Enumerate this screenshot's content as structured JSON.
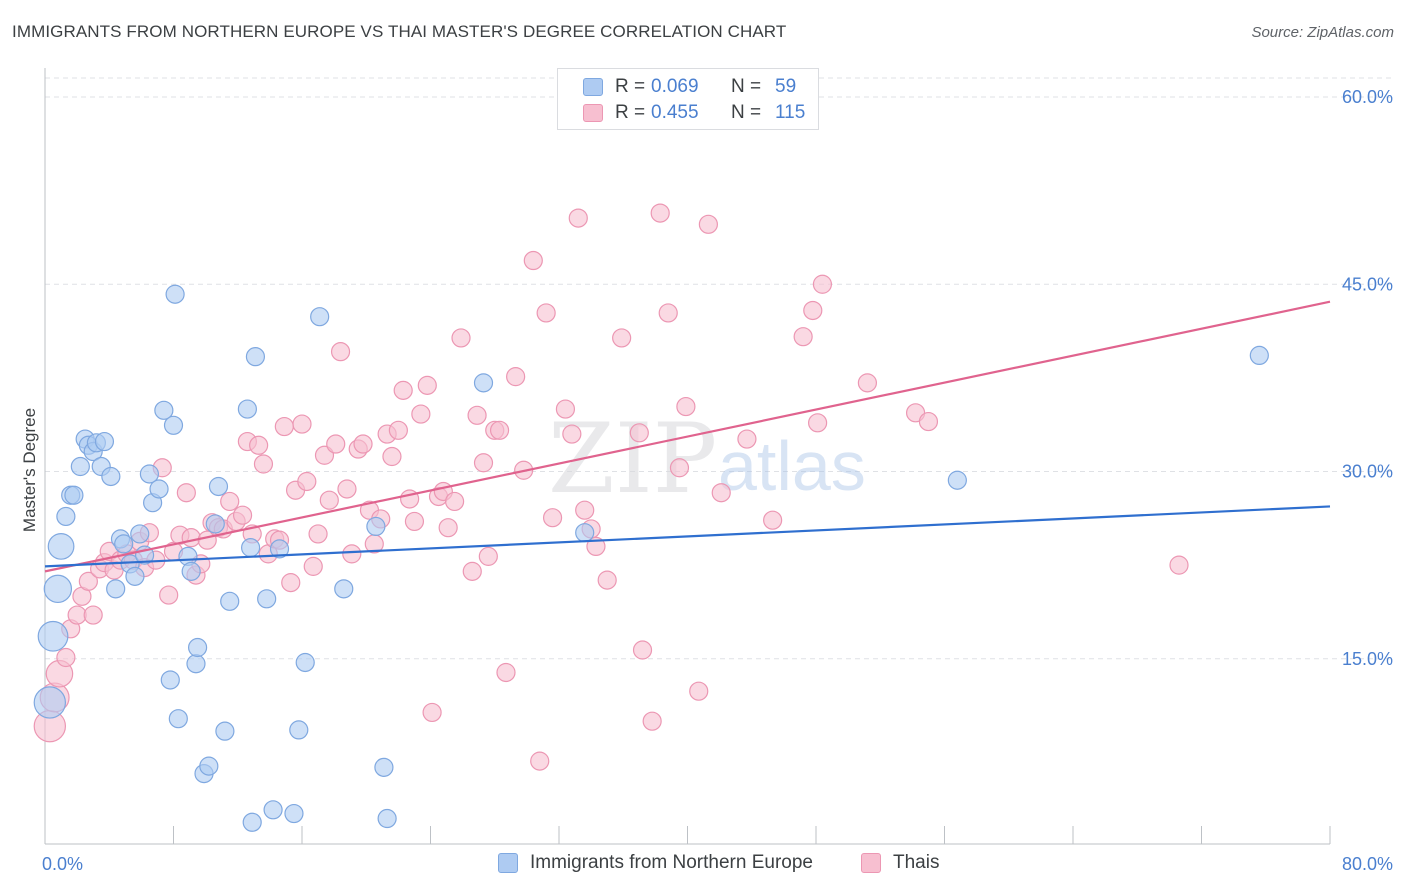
{
  "title": "IMMIGRANTS FROM NORTHERN EUROPE VS THAI MASTER'S DEGREE CORRELATION CHART",
  "source": "Source: ZipAtlas.com",
  "watermark": {
    "zip": "ZIP",
    "atlas": "atlas"
  },
  "colors": {
    "blue_fill": "#aecbf2",
    "blue_stroke": "#7fa8e0",
    "blue_line": "#2f6fcf",
    "pink_fill": "#f7bfd0",
    "pink_stroke": "#ec97b3",
    "pink_line": "#e0638e",
    "grid": "#dfe1e5",
    "tick_label": "#4a7fcf"
  },
  "legend": {
    "rows": [
      {
        "r_label": "R =",
        "r_value": "0.069",
        "n_label": "N =",
        "n_value": "59"
      },
      {
        "r_label": "R =",
        "r_value": "0.455",
        "n_label": "N =",
        "n_value": "115"
      }
    ]
  },
  "bottom_legend": {
    "series1": "Immigrants from Northern Europe",
    "series2": "Thais"
  },
  "chart_data": {
    "type": "scatter",
    "title": "IMMIGRANTS FROM NORTHERN EUROPE VS THAI MASTER'S DEGREE CORRELATION CHART",
    "xlabel": "",
    "ylabel": "Master's Degree",
    "xlim": [
      0,
      80
    ],
    "ylim": [
      0,
      60
    ],
    "x_tick_labels": {
      "left": "0.0%",
      "right": "80.0%"
    },
    "y_ticks": [
      {
        "value": 15,
        "label": "15.0%"
      },
      {
        "value": 30,
        "label": "30.0%"
      },
      {
        "value": 45,
        "label": "45.0%"
      },
      {
        "value": 60,
        "label": "60.0%"
      }
    ],
    "series": [
      {
        "name": "Immigrants from Northern Europe",
        "color": "blue",
        "trend": {
          "x": [
            0,
            80
          ],
          "y": [
            22.4,
            27.2
          ]
        },
        "points": [
          [
            0.3,
            11.5
          ],
          [
            0.5,
            16.8
          ],
          [
            0.8,
            20.6
          ],
          [
            1.0,
            24.0
          ],
          [
            1.3,
            26.4
          ],
          [
            1.6,
            28.1
          ],
          [
            1.8,
            28.1
          ],
          [
            2.2,
            30.4
          ],
          [
            2.5,
            32.6
          ],
          [
            2.7,
            32.1
          ],
          [
            3.0,
            31.6
          ],
          [
            3.2,
            32.3
          ],
          [
            3.5,
            30.4
          ],
          [
            3.7,
            32.4
          ],
          [
            4.1,
            29.6
          ],
          [
            4.4,
            20.6
          ],
          [
            4.7,
            24.6
          ],
          [
            4.9,
            24.2
          ],
          [
            5.3,
            22.6
          ],
          [
            5.6,
            21.6
          ],
          [
            5.9,
            25.0
          ],
          [
            6.2,
            23.3
          ],
          [
            6.5,
            29.8
          ],
          [
            6.7,
            27.5
          ],
          [
            7.1,
            28.6
          ],
          [
            7.4,
            34.9
          ],
          [
            7.8,
            13.3
          ],
          [
            8.0,
            33.7
          ],
          [
            8.1,
            44.2
          ],
          [
            8.3,
            10.2
          ],
          [
            8.9,
            23.2
          ],
          [
            9.1,
            22.0
          ],
          [
            9.4,
            14.6
          ],
          [
            9.5,
            15.9
          ],
          [
            9.9,
            5.8
          ],
          [
            10.2,
            6.4
          ],
          [
            10.6,
            25.8
          ],
          [
            10.8,
            28.8
          ],
          [
            11.2,
            9.2
          ],
          [
            11.5,
            19.6
          ],
          [
            12.6,
            35.0
          ],
          [
            12.8,
            23.9
          ],
          [
            12.9,
            1.9
          ],
          [
            13.1,
            39.2
          ],
          [
            13.8,
            19.8
          ],
          [
            14.2,
            2.9
          ],
          [
            14.6,
            23.8
          ],
          [
            15.5,
            2.6
          ],
          [
            15.8,
            9.3
          ],
          [
            16.2,
            14.7
          ],
          [
            17.1,
            42.4
          ],
          [
            18.6,
            20.6
          ],
          [
            20.6,
            25.6
          ],
          [
            21.1,
            6.3
          ],
          [
            21.3,
            2.2
          ],
          [
            27.3,
            37.1
          ],
          [
            33.6,
            25.1
          ],
          [
            56.8,
            29.3
          ],
          [
            75.6,
            39.3
          ]
        ]
      },
      {
        "name": "Thais",
        "color": "pink",
        "trend": {
          "x": [
            0,
            80
          ],
          "y": [
            22.0,
            43.6
          ]
        },
        "points": [
          [
            0.3,
            9.6
          ],
          [
            0.6,
            11.9
          ],
          [
            0.9,
            13.8
          ],
          [
            1.3,
            15.1
          ],
          [
            1.6,
            17.4
          ],
          [
            2.0,
            18.5
          ],
          [
            2.3,
            20.0
          ],
          [
            2.7,
            21.2
          ],
          [
            3.0,
            18.5
          ],
          [
            3.4,
            22.2
          ],
          [
            3.7,
            22.7
          ],
          [
            4.0,
            23.6
          ],
          [
            4.3,
            22.1
          ],
          [
            4.7,
            22.9
          ],
          [
            5.1,
            23.4
          ],
          [
            5.5,
            22.9
          ],
          [
            5.9,
            24.4
          ],
          [
            6.2,
            22.3
          ],
          [
            6.5,
            25.1
          ],
          [
            6.9,
            22.9
          ],
          [
            7.3,
            30.3
          ],
          [
            7.7,
            20.1
          ],
          [
            8.0,
            23.6
          ],
          [
            8.4,
            24.9
          ],
          [
            8.8,
            28.3
          ],
          [
            9.1,
            24.7
          ],
          [
            9.4,
            21.7
          ],
          [
            9.7,
            22.6
          ],
          [
            10.1,
            24.5
          ],
          [
            10.4,
            25.9
          ],
          [
            10.8,
            25.5
          ],
          [
            11.1,
            25.4
          ],
          [
            11.5,
            27.6
          ],
          [
            11.9,
            26.0
          ],
          [
            12.3,
            26.5
          ],
          [
            12.6,
            32.4
          ],
          [
            12.9,
            25.0
          ],
          [
            13.3,
            32.1
          ],
          [
            13.6,
            30.6
          ],
          [
            13.9,
            23.4
          ],
          [
            14.3,
            24.6
          ],
          [
            14.6,
            24.5
          ],
          [
            14.9,
            33.6
          ],
          [
            15.3,
            21.1
          ],
          [
            15.6,
            28.5
          ],
          [
            16.0,
            33.8
          ],
          [
            16.3,
            29.2
          ],
          [
            16.7,
            22.4
          ],
          [
            17.0,
            25.0
          ],
          [
            17.4,
            31.3
          ],
          [
            17.7,
            27.7
          ],
          [
            18.1,
            32.2
          ],
          [
            18.4,
            39.6
          ],
          [
            18.8,
            28.6
          ],
          [
            19.1,
            23.4
          ],
          [
            19.5,
            31.8
          ],
          [
            19.8,
            32.2
          ],
          [
            20.2,
            26.9
          ],
          [
            20.5,
            24.2
          ],
          [
            20.9,
            26.2
          ],
          [
            21.3,
            33.0
          ],
          [
            21.6,
            31.2
          ],
          [
            22.0,
            33.3
          ],
          [
            22.3,
            36.5
          ],
          [
            22.7,
            27.8
          ],
          [
            23.0,
            26.0
          ],
          [
            23.4,
            34.6
          ],
          [
            23.8,
            36.9
          ],
          [
            24.1,
            10.7
          ],
          [
            24.5,
            28.0
          ],
          [
            24.8,
            28.4
          ],
          [
            25.1,
            25.5
          ],
          [
            25.5,
            27.6
          ],
          [
            25.9,
            40.7
          ],
          [
            26.6,
            22.0
          ],
          [
            26.9,
            34.5
          ],
          [
            27.3,
            30.7
          ],
          [
            27.6,
            23.2
          ],
          [
            28.0,
            33.3
          ],
          [
            28.3,
            33.3
          ],
          [
            28.7,
            13.9
          ],
          [
            29.3,
            37.6
          ],
          [
            29.8,
            30.1
          ],
          [
            30.4,
            46.9
          ],
          [
            30.8,
            6.8
          ],
          [
            31.2,
            42.7
          ],
          [
            31.6,
            26.3
          ],
          [
            32.4,
            35.0
          ],
          [
            32.8,
            33.0
          ],
          [
            33.2,
            50.3
          ],
          [
            33.6,
            26.9
          ],
          [
            34.0,
            25.4
          ],
          [
            34.3,
            24.0
          ],
          [
            35.0,
            21.3
          ],
          [
            35.9,
            40.7
          ],
          [
            37.0,
            33.1
          ],
          [
            37.2,
            15.7
          ],
          [
            37.8,
            10.0
          ],
          [
            38.3,
            50.7
          ],
          [
            38.8,
            42.7
          ],
          [
            39.5,
            30.3
          ],
          [
            39.9,
            35.2
          ],
          [
            40.7,
            12.4
          ],
          [
            41.3,
            49.8
          ],
          [
            42.1,
            28.3
          ],
          [
            43.7,
            32.6
          ],
          [
            45.3,
            26.1
          ],
          [
            47.2,
            40.8
          ],
          [
            47.8,
            42.9
          ],
          [
            48.1,
            33.9
          ],
          [
            48.4,
            45.0
          ],
          [
            51.2,
            37.1
          ],
          [
            54.2,
            34.7
          ],
          [
            55.0,
            34.0
          ],
          [
            70.6,
            22.5
          ]
        ]
      }
    ]
  }
}
